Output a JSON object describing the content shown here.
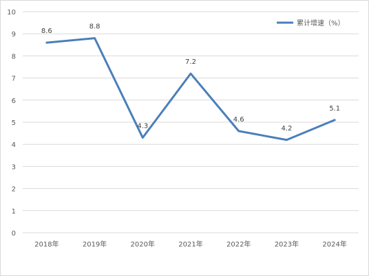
{
  "chart_data": {
    "type": "line",
    "title": "",
    "xlabel": "",
    "ylabel": "",
    "categories": [
      "2018年",
      "2019年",
      "2020年",
      "2021年",
      "2022年",
      "2023年",
      "2024年"
    ],
    "series": [
      {
        "name": "累计增速（%）",
        "values": [
          8.6,
          8.8,
          4.3,
          7.2,
          4.6,
          4.2,
          5.1
        ],
        "color": "#4a7ebb"
      }
    ],
    "data_labels": [
      "8.6",
      "8.8",
      "4.3",
      "7.2",
      "4.6",
      "4.2",
      "5.1"
    ],
    "y_ticks": [
      "0",
      "1",
      "2",
      "3",
      "4",
      "5",
      "6",
      "7",
      "8",
      "9",
      "10"
    ],
    "ylim": [
      0,
      10
    ],
    "grid": true,
    "legend_position": "top-right",
    "colors": {
      "line": "#4a7ebb",
      "grid": "#d9d9d9",
      "axis_text": "#595959"
    }
  }
}
